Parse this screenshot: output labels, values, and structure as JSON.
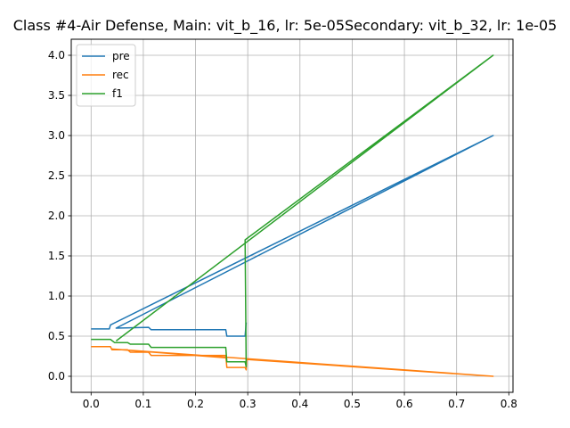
{
  "chart_data": {
    "type": "line",
    "title": "Class #4-Air Defense, Main: vit_b_16, lr: 5e-05Secondary: vit_b_32, lr: 1e-05",
    "xlabel": "",
    "ylabel": "",
    "xlim": [
      -0.038,
      0.808
    ],
    "ylim": [
      -0.2,
      4.2
    ],
    "grid": true,
    "legend_placement": "top-left",
    "xticks": [
      0.0,
      0.1,
      0.2,
      0.3,
      0.4,
      0.5,
      0.6,
      0.7,
      0.8
    ],
    "xtick_labels": [
      "0.0",
      "0.1",
      "0.2",
      "0.3",
      "0.4",
      "0.5",
      "0.6",
      "0.7",
      "0.8"
    ],
    "yticks": [
      0.0,
      0.5,
      1.0,
      1.5,
      2.0,
      2.5,
      3.0,
      3.5,
      4.0
    ],
    "ytick_labels": [
      "0.0",
      "0.5",
      "1.0",
      "1.5",
      "2.0",
      "2.5",
      "3.0",
      "3.5",
      "4.0"
    ],
    "series": [
      {
        "name": "pre",
        "color": "#1f77b4",
        "points": [
          [
            0.0,
            0.59
          ],
          [
            0.035,
            0.59
          ],
          [
            0.037,
            0.64
          ],
          [
            0.77,
            3.0
          ],
          [
            0.048,
            0.6
          ],
          [
            0.11,
            0.61
          ],
          [
            0.115,
            0.58
          ],
          [
            0.258,
            0.58
          ],
          [
            0.26,
            0.5
          ],
          [
            0.295,
            0.5
          ],
          [
            0.297,
            0.67
          ]
        ]
      },
      {
        "name": "rec",
        "color": "#ff7f0e",
        "points": [
          [
            0.0,
            0.37
          ],
          [
            0.037,
            0.37
          ],
          [
            0.04,
            0.33
          ],
          [
            0.07,
            0.33
          ],
          [
            0.075,
            0.3
          ],
          [
            0.11,
            0.3
          ],
          [
            0.115,
            0.26
          ],
          [
            0.258,
            0.26
          ],
          [
            0.26,
            0.11
          ],
          [
            0.295,
            0.11
          ],
          [
            0.297,
            0.08
          ],
          [
            0.298,
            0.21
          ],
          [
            0.77,
            0.0
          ],
          [
            0.04,
            0.34
          ],
          [
            0.258,
            0.23
          ]
        ]
      },
      {
        "name": "f1",
        "color": "#2ca02c",
        "points": [
          [
            0.0,
            0.46
          ],
          [
            0.037,
            0.46
          ],
          [
            0.045,
            0.42
          ],
          [
            0.07,
            0.42
          ],
          [
            0.075,
            0.4
          ],
          [
            0.11,
            0.4
          ],
          [
            0.115,
            0.36
          ],
          [
            0.258,
            0.36
          ],
          [
            0.26,
            0.18
          ],
          [
            0.295,
            0.18
          ],
          [
            0.297,
            0.12
          ],
          [
            0.295,
            1.7
          ],
          [
            0.77,
            4.0
          ],
          [
            0.048,
            0.44
          ]
        ]
      }
    ]
  }
}
